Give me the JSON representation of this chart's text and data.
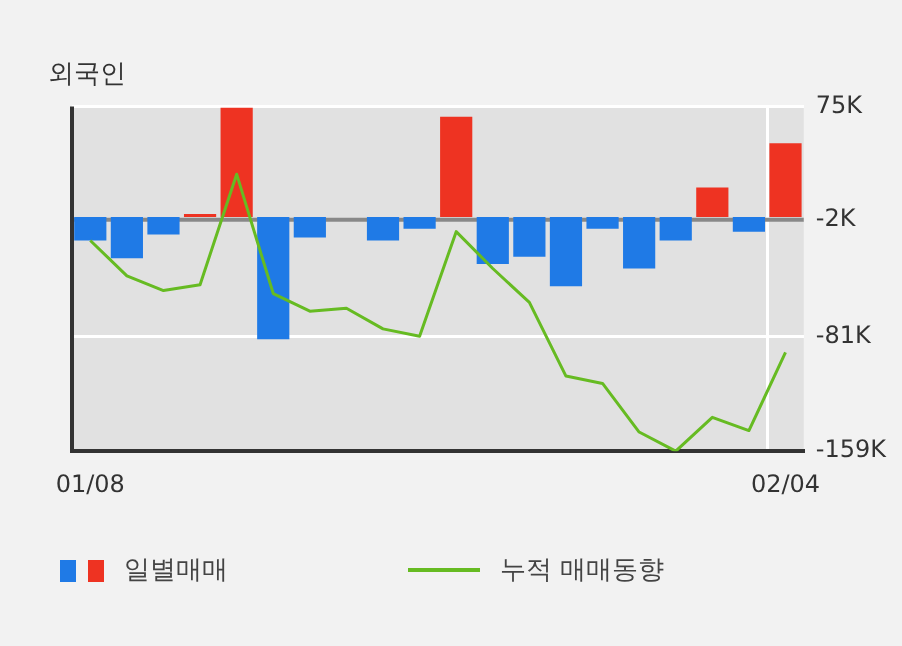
{
  "chart_data": {
    "type": "bar",
    "title": "외국인",
    "categories": [
      "01/08",
      null,
      null,
      null,
      null,
      null,
      null,
      null,
      null,
      null,
      null,
      null,
      null,
      null,
      null,
      null,
      null,
      null,
      null,
      "02/04"
    ],
    "series": [
      {
        "name": "일별매매",
        "colors": [
          "#1f7ae6",
          "#1f7ae6",
          "#1f7ae6",
          "#ee3322",
          "#ee3322",
          "#1f7ae6",
          "#1f7ae6",
          "#ee3322",
          "#1f7ae6",
          "#1f7ae6",
          "#ee3322",
          "#1f7ae6",
          "#1f7ae6",
          "#1f7ae6",
          "#1f7ae6",
          "#1f7ae6",
          "#1f7ae6",
          "#ee3322",
          "#1f7ae6",
          "#ee3322"
        ],
        "values": [
          -16,
          -28,
          -12,
          2,
          74,
          -83,
          -14,
          0,
          -16,
          -8,
          68,
          -32,
          -27,
          -47,
          -8,
          -35,
          -16,
          20,
          -10,
          50
        ]
      },
      {
        "type": "line",
        "name": "누적 매매동향",
        "color": "#66bb22",
        "values": [
          -16,
          -40,
          -50,
          -46,
          29,
          -52,
          -64,
          -62,
          -76,
          -81,
          -10,
          -35,
          -58,
          -108,
          -113,
          -146,
          -159,
          -136,
          -145,
          -92
        ]
      }
    ],
    "ylim": [
      -159,
      75
    ],
    "yticks": [
      {
        "value": 75,
        "label": "75K"
      },
      {
        "value": -2,
        "label": "-2K"
      },
      {
        "value": -81,
        "label": "-81K"
      },
      {
        "value": -159,
        "label": "-159K"
      }
    ],
    "ref_lines": [
      {
        "axis": "y",
        "value": -2,
        "color": "#888888"
      }
    ],
    "grid": true,
    "legend": "bottom",
    "marker": "none",
    "line_style": "solid"
  }
}
